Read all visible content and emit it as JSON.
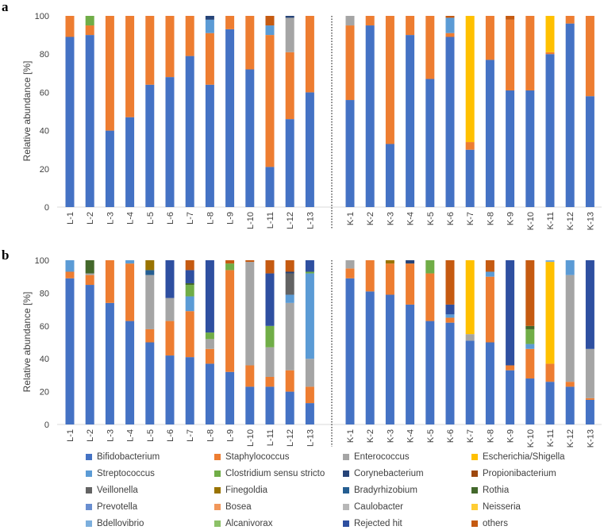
{
  "colors": {
    "Bifidobacterium": "#4472c4",
    "Staphylococcus": "#ed7d31",
    "Enterococcus": "#a5a5a5",
    "Escherichia/Shigella": "#ffc000",
    "Streptococcus": "#5b9bd5",
    "Clostridium sensu stricto": "#70ad47",
    "Corynebacterium": "#264478",
    "Propionibacterium": "#9e480e",
    "Veillonella": "#636363",
    "Finegoldia": "#997300",
    "Bradyrhizobium": "#255e91",
    "Rothia": "#43682b",
    "Prevotella": "#698ed0",
    "Bosea": "#f1975a",
    "Caulobacter": "#b7b7b7",
    "Neisseria": "#ffcd33",
    "Bdellovibrio": "#7cafdd",
    "Alcanivorax": "#8cc168",
    "Rejected hit": "#2e4fa0",
    "others": "#c55a11"
  },
  "legend": [
    "Bifidobacterium",
    "Staphylococcus",
    "Enterococcus",
    "Escherichia/Shigella",
    "Streptococcus",
    "Clostridium sensu stricto",
    "Corynebacterium",
    "Propionibacterium",
    "Veillonella",
    "Finegoldia",
    "Bradyrhizobium",
    "Rothia",
    "Prevotella",
    "Bosea",
    "Caulobacter",
    "Neisseria",
    "Bdellovibrio",
    "Alcanivorax",
    "Rejected hit",
    "others"
  ],
  "chart_data": [
    {
      "type": "bar",
      "stacked": true,
      "panel": "a",
      "ylabel": "Relative abundance [%]",
      "ylim": [
        0,
        100
      ],
      "yticks": [
        0,
        20,
        40,
        60,
        80,
        100
      ],
      "groups": [
        {
          "categories": [
            "L-1",
            "L-2",
            "L-3",
            "L-4",
            "L-5",
            "L-6",
            "L-7",
            "L-8",
            "L-9",
            "L-10",
            "L-11",
            "L-12",
            "L-13"
          ],
          "bars": [
            [
              [
                "Bifidobacterium",
                89
              ],
              [
                "Staphylococcus",
                11
              ]
            ],
            [
              [
                "Bifidobacterium",
                90
              ],
              [
                "Staphylococcus",
                5
              ],
              [
                "Clostridium sensu stricto",
                5
              ]
            ],
            [
              [
                "Bifidobacterium",
                40
              ],
              [
                "Staphylococcus",
                60
              ]
            ],
            [
              [
                "Bifidobacterium",
                47
              ],
              [
                "Staphylococcus",
                53
              ]
            ],
            [
              [
                "Bifidobacterium",
                64
              ],
              [
                "Staphylococcus",
                36
              ]
            ],
            [
              [
                "Bifidobacterium",
                68
              ],
              [
                "Staphylococcus",
                32
              ]
            ],
            [
              [
                "Bifidobacterium",
                79
              ],
              [
                "Staphylococcus",
                21
              ]
            ],
            [
              [
                "Bifidobacterium",
                64
              ],
              [
                "Staphylococcus",
                27
              ],
              [
                "Streptococcus",
                7
              ],
              [
                "Corynebacterium",
                2
              ]
            ],
            [
              [
                "Bifidobacterium",
                93
              ],
              [
                "Staphylococcus",
                7
              ]
            ],
            [
              [
                "Bifidobacterium",
                72
              ],
              [
                "Staphylococcus",
                28
              ]
            ],
            [
              [
                "Bifidobacterium",
                21
              ],
              [
                "Staphylococcus",
                69
              ],
              [
                "Streptococcus",
                5
              ],
              [
                "others",
                5
              ]
            ],
            [
              [
                "Bifidobacterium",
                46
              ],
              [
                "Staphylococcus",
                35
              ],
              [
                "Enterococcus",
                18
              ],
              [
                "Corynebacterium",
                1
              ]
            ],
            [
              [
                "Bifidobacterium",
                60
              ],
              [
                "Staphylococcus",
                40
              ]
            ]
          ]
        },
        {
          "categories": [
            "K-1",
            "K-2",
            "K-3",
            "K-4",
            "K-5",
            "K-6",
            "K-7",
            "K-8",
            "K-9",
            "K-10",
            "K-11",
            "K-12",
            "K-13"
          ],
          "bars": [
            [
              [
                "Bifidobacterium",
                56
              ],
              [
                "Staphylococcus",
                39
              ],
              [
                "Enterococcus",
                5
              ]
            ],
            [
              [
                "Bifidobacterium",
                95
              ],
              [
                "Staphylococcus",
                5
              ]
            ],
            [
              [
                "Bifidobacterium",
                33
              ],
              [
                "Staphylococcus",
                67
              ]
            ],
            [
              [
                "Bifidobacterium",
                90
              ],
              [
                "Staphylococcus",
                10
              ]
            ],
            [
              [
                "Bifidobacterium",
                67
              ],
              [
                "Staphylococcus",
                33
              ]
            ],
            [
              [
                "Bifidobacterium",
                89
              ],
              [
                "Staphylococcus",
                2
              ],
              [
                "Streptococcus",
                8
              ],
              [
                "others",
                1
              ]
            ],
            [
              [
                "Bifidobacterium",
                30
              ],
              [
                "Staphylococcus",
                4
              ],
              [
                "Escherichia/Shigella",
                66
              ]
            ],
            [
              [
                "Bifidobacterium",
                77
              ],
              [
                "Staphylococcus",
                23
              ]
            ],
            [
              [
                "Bifidobacterium",
                61
              ],
              [
                "Staphylococcus",
                37
              ],
              [
                "others",
                2
              ]
            ],
            [
              [
                "Bifidobacterium",
                61
              ],
              [
                "Staphylococcus",
                39
              ]
            ],
            [
              [
                "Bifidobacterium",
                80
              ],
              [
                "Staphylococcus",
                1
              ],
              [
                "Escherichia/Shigella",
                19
              ]
            ],
            [
              [
                "Bifidobacterium",
                96
              ],
              [
                "Staphylococcus",
                4
              ]
            ],
            [
              [
                "Bifidobacterium",
                58
              ],
              [
                "Staphylococcus",
                42
              ]
            ]
          ]
        }
      ]
    },
    {
      "type": "bar",
      "stacked": true,
      "panel": "b",
      "ylabel": "Relative abundance [%]",
      "ylim": [
        0,
        100
      ],
      "yticks": [
        0,
        20,
        40,
        60,
        80,
        100
      ],
      "groups": [
        {
          "categories": [
            "L-1",
            "L-2",
            "L-3",
            "L-4",
            "L-5",
            "L-6",
            "L-7",
            "L-8",
            "L-9",
            "L-10",
            "L-11",
            "L-12",
            "L-13"
          ],
          "bars": [
            [
              [
                "Bifidobacterium",
                89
              ],
              [
                "Staphylococcus",
                4
              ],
              [
                "Streptococcus",
                7
              ]
            ],
            [
              [
                "Bifidobacterium",
                85
              ],
              [
                "Staphylococcus",
                6
              ],
              [
                "Enterococcus",
                1
              ],
              [
                "Rothia",
                8
              ]
            ],
            [
              [
                "Bifidobacterium",
                74
              ],
              [
                "Staphylococcus",
                26
              ]
            ],
            [
              [
                "Bifidobacterium",
                63
              ],
              [
                "Staphylococcus",
                35
              ],
              [
                "Streptococcus",
                2
              ]
            ],
            [
              [
                "Bifidobacterium",
                50
              ],
              [
                "Staphylococcus",
                8
              ],
              [
                "Enterococcus",
                33
              ],
              [
                "Bradyrhizobium",
                3
              ],
              [
                "Finegoldia",
                6
              ]
            ],
            [
              [
                "Bifidobacterium",
                42
              ],
              [
                "Staphylococcus",
                21
              ],
              [
                "Enterococcus",
                14
              ],
              [
                "Rejected hit",
                23
              ]
            ],
            [
              [
                "Bifidobacterium",
                41
              ],
              [
                "Staphylococcus",
                28
              ],
              [
                "Streptococcus",
                9
              ],
              [
                "Clostridium sensu stricto",
                7
              ],
              [
                "Rothia",
                1
              ],
              [
                "Rejected hit",
                8
              ],
              [
                "others",
                6
              ]
            ],
            [
              [
                "Bifidobacterium",
                37
              ],
              [
                "Staphylococcus",
                9
              ],
              [
                "Enterococcus",
                6
              ],
              [
                "Clostridium sensu stricto",
                4
              ],
              [
                "Rejected hit",
                44
              ]
            ],
            [
              [
                "Bifidobacterium",
                32
              ],
              [
                "Staphylococcus",
                62
              ],
              [
                "Clostridium sensu stricto",
                4
              ],
              [
                "others",
                2
              ]
            ],
            [
              [
                "Bifidobacterium",
                23
              ],
              [
                "Staphylococcus",
                13
              ],
              [
                "Enterococcus",
                63
              ],
              [
                "others",
                1
              ]
            ],
            [
              [
                "Bifidobacterium",
                23
              ],
              [
                "Staphylococcus",
                6
              ],
              [
                "Enterococcus",
                18
              ],
              [
                "Clostridium sensu stricto",
                13
              ],
              [
                "Rejected hit",
                32
              ],
              [
                "others",
                8
              ]
            ],
            [
              [
                "Bifidobacterium",
                20
              ],
              [
                "Staphylococcus",
                13
              ],
              [
                "Enterococcus",
                41
              ],
              [
                "Streptococcus",
                5
              ],
              [
                "Veillonella",
                13
              ],
              [
                "Corynebacterium",
                1
              ],
              [
                "others",
                7
              ]
            ],
            [
              [
                "Bifidobacterium",
                13
              ],
              [
                "Staphylococcus",
                10
              ],
              [
                "Enterococcus",
                17
              ],
              [
                "Streptococcus",
                52
              ],
              [
                "Clostridium sensu stricto",
                1
              ],
              [
                "Rejected hit",
                7
              ]
            ]
          ]
        },
        {
          "categories": [
            "K-1",
            "K-2",
            "K-3",
            "K-4",
            "K-5",
            "K-6",
            "K-7",
            "K-8",
            "K-9",
            "K-10",
            "K-11",
            "K-12",
            "K-13"
          ],
          "bars": [
            [
              [
                "Bifidobacterium",
                89
              ],
              [
                "Staphylococcus",
                6
              ],
              [
                "Enterococcus",
                5
              ]
            ],
            [
              [
                "Bifidobacterium",
                81
              ],
              [
                "Staphylococcus",
                19
              ]
            ],
            [
              [
                "Bifidobacterium",
                79
              ],
              [
                "Staphylococcus",
                19
              ],
              [
                "Finegoldia",
                2
              ]
            ],
            [
              [
                "Bifidobacterium",
                73
              ],
              [
                "Staphylococcus",
                25
              ],
              [
                "Corynebacterium",
                2
              ]
            ],
            [
              [
                "Bifidobacterium",
                63
              ],
              [
                "Staphylococcus",
                29
              ],
              [
                "Clostridium sensu stricto",
                8
              ]
            ],
            [
              [
                "Bifidobacterium",
                62
              ],
              [
                "Staphylococcus",
                3
              ],
              [
                "Streptococcus",
                2
              ],
              [
                "Rejected hit",
                6
              ],
              [
                "others",
                27
              ]
            ],
            [
              [
                "Bifidobacterium",
                51
              ],
              [
                "Enterococcus",
                4
              ],
              [
                "Escherichia/Shigella",
                45
              ]
            ],
            [
              [
                "Bifidobacterium",
                50
              ],
              [
                "Staphylococcus",
                40
              ],
              [
                "Streptococcus",
                3
              ],
              [
                "others",
                7
              ]
            ],
            [
              [
                "Bifidobacterium",
                33
              ],
              [
                "Staphylococcus",
                3
              ],
              [
                "Rejected hit",
                64
              ]
            ],
            [
              [
                "Bifidobacterium",
                28
              ],
              [
                "Staphylococcus",
                18
              ],
              [
                "Streptococcus",
                3
              ],
              [
                "Clostridium sensu stricto",
                9
              ],
              [
                "Rothia",
                2
              ],
              [
                "others",
                40
              ]
            ],
            [
              [
                "Bifidobacterium",
                26
              ],
              [
                "Staphylococcus",
                11
              ],
              [
                "Escherichia/Shigella",
                62
              ],
              [
                "Bdellovibrio",
                1
              ]
            ],
            [
              [
                "Bifidobacterium",
                23
              ],
              [
                "Staphylococcus",
                3
              ],
              [
                "Enterococcus",
                65
              ],
              [
                "Streptococcus",
                9
              ]
            ],
            [
              [
                "Bifidobacterium",
                15
              ],
              [
                "Staphylococcus",
                1
              ],
              [
                "Enterococcus",
                30
              ],
              [
                "Rejected hit",
                54
              ]
            ]
          ]
        }
      ]
    }
  ]
}
